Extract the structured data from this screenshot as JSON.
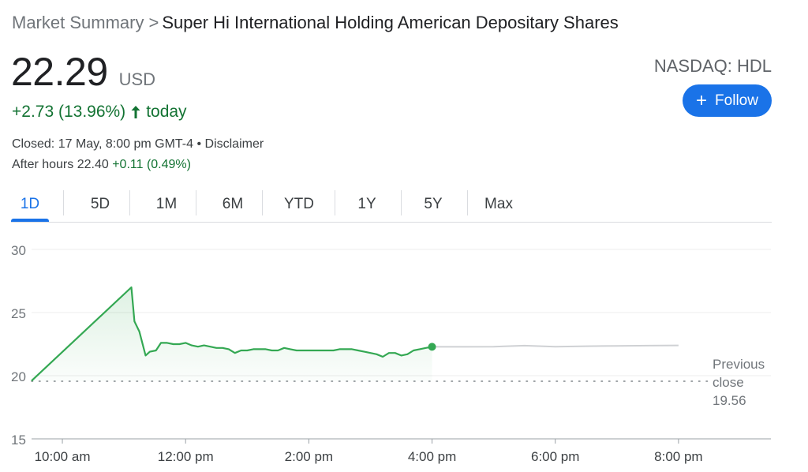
{
  "breadcrumb": {
    "root": "Market Summary",
    "separator": ">",
    "name": "Super Hi International Holding American Depositary Shares"
  },
  "quote": {
    "price": "22.29",
    "currency": "USD",
    "exchange": "NASDAQ: HDL",
    "change": "+2.73 (13.96%)",
    "change_period": "today",
    "status": "Closed: 17 May, 8:00 pm GMT-4 • Disclaimer",
    "after_hours_label": "After hours 22.40",
    "after_hours_change": "+0.11 (0.49%)"
  },
  "follow": {
    "label": "Follow",
    "icon": "plus-icon"
  },
  "tabs": [
    {
      "label": "1D",
      "active": true
    },
    {
      "label": "5D",
      "active": false
    },
    {
      "label": "1M",
      "active": false
    },
    {
      "label": "6M",
      "active": false
    },
    {
      "label": "YTD",
      "active": false
    },
    {
      "label": "1Y",
      "active": false
    },
    {
      "label": "5Y",
      "active": false
    },
    {
      "label": "Max",
      "active": false
    }
  ],
  "colors": {
    "accent": "#1a73e8",
    "up": "#137333",
    "line": "#34a853",
    "after_hours_line": "#cfd1d4"
  },
  "chart_data": {
    "type": "line",
    "ylim": [
      15,
      30
    ],
    "yticks": [
      "30",
      "25",
      "20",
      "15"
    ],
    "xlim": [
      9.5,
      21.5
    ],
    "xticks": [
      {
        "x": 10,
        "label": "10:00 am"
      },
      {
        "x": 12,
        "label": "12:00 pm"
      },
      {
        "x": 14,
        "label": "2:00 pm"
      },
      {
        "x": 16,
        "label": "4:00 pm"
      },
      {
        "x": 18,
        "label": "6:00 pm"
      },
      {
        "x": 20,
        "label": "8:00 pm"
      }
    ],
    "grid": true,
    "previous_close": 19.56,
    "previous_close_label": [
      "Previous",
      "close",
      "19.56"
    ],
    "series": [
      {
        "session": "regular",
        "x": [
          9.5,
          11.12,
          11.17,
          11.25,
          11.35,
          11.42,
          11.52,
          11.6,
          11.7,
          11.8,
          11.9,
          12.0,
          12.1,
          12.2,
          12.3,
          12.4,
          12.5,
          12.6,
          12.7,
          12.8,
          12.9,
          13.0,
          13.1,
          13.2,
          13.3,
          13.4,
          13.5,
          13.6,
          13.7,
          13.8,
          13.9,
          14.0,
          14.1,
          14.2,
          14.3,
          14.4,
          14.5,
          14.6,
          14.7,
          14.8,
          14.9,
          15.0,
          15.1,
          15.2,
          15.3,
          15.4,
          15.5,
          15.6,
          15.7,
          15.8,
          15.9,
          16.0
        ],
        "y": [
          19.6,
          27.0,
          24.3,
          23.5,
          21.6,
          21.9,
          22.0,
          22.6,
          22.6,
          22.5,
          22.5,
          22.6,
          22.4,
          22.3,
          22.4,
          22.3,
          22.2,
          22.2,
          22.1,
          21.8,
          22.0,
          22.0,
          22.1,
          22.1,
          22.1,
          22.0,
          22.0,
          22.2,
          22.1,
          22.0,
          22.0,
          22.0,
          22.0,
          22.0,
          22.0,
          22.0,
          22.1,
          22.1,
          22.1,
          22.0,
          21.9,
          21.8,
          21.7,
          21.5,
          21.8,
          21.8,
          21.6,
          21.7,
          22.0,
          22.1,
          22.2,
          22.29
        ]
      },
      {
        "session": "after-hours",
        "x": [
          16.0,
          16.5,
          17.0,
          17.5,
          18.0,
          18.5,
          19.0,
          19.5,
          20.0
        ],
        "y": [
          22.29,
          22.29,
          22.3,
          22.38,
          22.3,
          22.34,
          22.36,
          22.38,
          22.4
        ]
      }
    ]
  }
}
